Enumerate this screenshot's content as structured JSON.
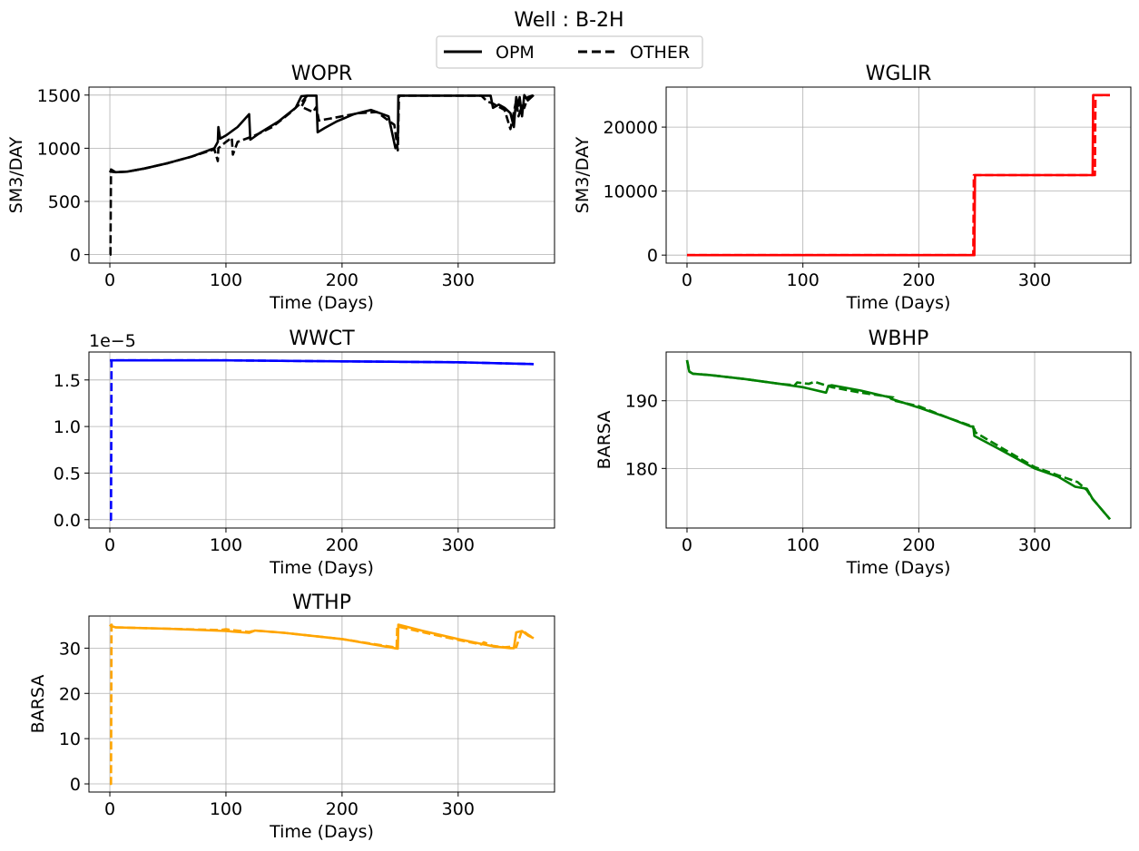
{
  "figure": {
    "title": "Well : B-2H",
    "legend": [
      {
        "label": "OPM",
        "style": "solid"
      },
      {
        "label": "OTHER",
        "style": "dashed"
      }
    ]
  },
  "chart_data": [
    {
      "type": "line",
      "title": "WOPR",
      "xlabel": "Time (Days)",
      "ylabel": "SM3/DAY",
      "xlim": [
        -18,
        383
      ],
      "ylim": [
        -80,
        1575
      ],
      "xticks": [
        0,
        100,
        200,
        300
      ],
      "yticks": [
        0,
        500,
        1000,
        1500
      ],
      "ytick_labels": [
        "0",
        "500",
        "1000",
        "1500"
      ],
      "offset_text": "",
      "color": "#000000",
      "grid": true,
      "series": [
        {
          "name": "OPM",
          "style": "solid",
          "x": [
            0,
            0.5,
            5,
            15,
            30,
            50,
            70,
            90,
            93,
            93.5,
            95,
            100,
            110,
            120,
            121,
            130,
            145,
            160,
            165,
            170,
            178,
            178.5,
            179,
            185,
            195,
            210,
            225,
            240,
            246,
            248,
            248.5,
            260,
            280,
            300,
            320,
            328,
            330,
            335,
            340,
            345,
            348,
            350,
            352,
            353,
            355,
            357,
            360,
            365
          ],
          "y": [
            790,
            780,
            775,
            780,
            810,
            860,
            920,
            1000,
            1060,
            1200,
            1090,
            1120,
            1200,
            1320,
            1080,
            1150,
            1250,
            1380,
            1490,
            1495,
            1495,
            1300,
            1150,
            1190,
            1250,
            1320,
            1360,
            1300,
            1000,
            1040,
            1495,
            1495,
            1495,
            1495,
            1495,
            1495,
            1380,
            1410,
            1380,
            1330,
            1200,
            1480,
            1400,
            1480,
            1300,
            1500,
            1450,
            1500
          ]
        },
        {
          "name": "OTHER",
          "style": "dashed",
          "x": [
            0,
            0.5,
            1,
            5,
            15,
            30,
            50,
            70,
            90,
            93,
            93.5,
            100,
            105,
            106,
            110,
            125,
            140,
            155,
            165,
            170,
            165,
            175,
            178,
            180,
            190,
            200,
            215,
            230,
            245,
            248,
            249,
            260,
            280,
            300,
            320,
            325,
            330,
            340,
            345,
            350,
            352,
            355,
            357,
            360,
            365
          ],
          "y": [
            0,
            0,
            800,
            775,
            780,
            810,
            860,
            920,
            990,
            880,
            1000,
            1060,
            1100,
            940,
            1060,
            1120,
            1200,
            1330,
            1430,
            1495,
            1390,
            1340,
            1390,
            1260,
            1280,
            1300,
            1330,
            1340,
            1220,
            980,
            1495,
            1495,
            1495,
            1495,
            1495,
            1440,
            1420,
            1360,
            1180,
            1450,
            1300,
            1400,
            1380,
            1480,
            1500
          ]
        }
      ]
    },
    {
      "type": "line",
      "title": "WGLIR",
      "xlabel": "Time (Days)",
      "ylabel": "SM3/DAY",
      "xlim": [
        -18,
        383
      ],
      "ylim": [
        -1250,
        26250
      ],
      "xticks": [
        0,
        100,
        200,
        300
      ],
      "yticks": [
        0,
        10000,
        20000
      ],
      "ytick_labels": [
        "0",
        "10000",
        "20000"
      ],
      "offset_text": "",
      "color": "#ff0000",
      "grid": true,
      "series": [
        {
          "name": "OPM",
          "style": "solid",
          "x": [
            0,
            248,
            248.5,
            350,
            350.5,
            365
          ],
          "y": [
            0,
            0,
            12500,
            12500,
            25000,
            25000
          ]
        },
        {
          "name": "OTHER",
          "style": "dashed",
          "x": [
            0,
            247,
            247.5,
            352,
            352.5,
            365
          ],
          "y": [
            0,
            0,
            12500,
            12500,
            25000,
            25000
          ]
        }
      ]
    },
    {
      "type": "line",
      "title": "WWCT",
      "xlabel": "Time (Days)",
      "ylabel": "",
      "xlim": [
        -18,
        383
      ],
      "ylim": [
        -0.09,
        1.8
      ],
      "xticks": [
        0,
        100,
        200,
        300
      ],
      "yticks": [
        0,
        0.5,
        1.0,
        1.5
      ],
      "ytick_labels": [
        "0.0",
        "0.5",
        "1.0",
        "1.5"
      ],
      "offset_text": "1e−5",
      "color": "#0000ff",
      "grid": true,
      "series": [
        {
          "name": "OPM",
          "style": "solid",
          "x": [
            0,
            1,
            100,
            200,
            300,
            365
          ],
          "y": [
            1.71,
            1.71,
            1.71,
            1.7,
            1.69,
            1.67
          ]
        },
        {
          "name": "OTHER",
          "style": "dashed",
          "x": [
            0,
            1,
            1.5,
            100,
            200,
            300,
            365
          ],
          "y": [
            0,
            0,
            1.71,
            1.71,
            1.7,
            1.69,
            1.67
          ]
        }
      ]
    },
    {
      "type": "line",
      "title": "WBHP",
      "xlabel": "Time (Days)",
      "ylabel": "BARSA",
      "xlim": [
        -18,
        383
      ],
      "ylim": [
        171.2,
        197.2
      ],
      "xticks": [
        0,
        100,
        200,
        300
      ],
      "yticks": [
        180,
        190
      ],
      "ytick_labels": [
        "180",
        "190"
      ],
      "offset_text": "",
      "color": "#008000",
      "grid": true,
      "series": [
        {
          "name": "OPM",
          "style": "solid",
          "x": [
            0,
            1,
            2,
            5,
            20,
            50,
            80,
            100,
            120,
            122,
            125,
            150,
            175,
            176,
            200,
            225,
            245,
            247,
            248,
            270,
            300,
            320,
            335,
            345,
            350,
            365
          ],
          "y": [
            196,
            195,
            194.3,
            194,
            193.8,
            193.2,
            192.5,
            192,
            191.2,
            192.2,
            192.3,
            191.5,
            190.5,
            190.3,
            189,
            187.5,
            186.2,
            186.2,
            184.8,
            182.8,
            180,
            178.8,
            177.3,
            177,
            175.5,
            172.5
          ]
        },
        {
          "name": "OTHER",
          "style": "dashed",
          "x": [
            0,
            1,
            2,
            5,
            20,
            50,
            80,
            93,
            95,
            105,
            110,
            125,
            150,
            178,
            179,
            200,
            225,
            245,
            248,
            249,
            270,
            300,
            320,
            337,
            345,
            350,
            365
          ],
          "y": [
            196,
            195.2,
            194.3,
            194,
            193.8,
            193.2,
            192.5,
            192.3,
            192.7,
            192.5,
            192.8,
            192.0,
            191.2,
            190.5,
            190,
            189.2,
            187.5,
            186.3,
            185.8,
            185.3,
            183.2,
            180.2,
            179.0,
            178.0,
            176.8,
            175.5,
            172.5
          ]
        }
      ]
    },
    {
      "type": "line",
      "title": "WTHP",
      "xlabel": "Time (Days)",
      "ylabel": "BARSA",
      "xlim": [
        -18,
        383
      ],
      "ylim": [
        -1.8,
        37.1
      ],
      "xticks": [
        0,
        100,
        200,
        300
      ],
      "yticks": [
        0,
        10,
        20,
        30
      ],
      "ytick_labels": [
        "0",
        "10",
        "20",
        "30"
      ],
      "offset_text": "",
      "color": "#ffa500",
      "grid": true,
      "series": [
        {
          "name": "OPM",
          "style": "solid",
          "x": [
            0,
            1,
            5,
            50,
            100,
            120,
            125,
            150,
            200,
            245,
            248,
            248.5,
            270,
            300,
            330,
            345,
            348,
            350,
            355,
            360,
            365
          ],
          "y": [
            35.2,
            34.9,
            34.6,
            34.3,
            33.8,
            33.4,
            33.9,
            33.4,
            32.0,
            30.0,
            29.9,
            35.2,
            33.8,
            32.0,
            30.4,
            30.0,
            30.0,
            33.5,
            33.8,
            32.8,
            32.2
          ]
        },
        {
          "name": "OTHER",
          "style": "dashed",
          "x": [
            0,
            1,
            1.5,
            5,
            50,
            95,
            100,
            105,
            120,
            125,
            150,
            200,
            245,
            247,
            247.5,
            270,
            300,
            320,
            322,
            330,
            340,
            345,
            350,
            355,
            360,
            365
          ],
          "y": [
            0,
            0,
            35.2,
            34.6,
            34.3,
            34.0,
            34.2,
            34.0,
            33.6,
            33.9,
            33.4,
            32.0,
            30.2,
            30.0,
            34.8,
            33.5,
            31.8,
            30.8,
            31.3,
            30.5,
            30.2,
            30.3,
            30.2,
            34.0,
            33.0,
            32.2
          ]
        }
      ]
    }
  ]
}
